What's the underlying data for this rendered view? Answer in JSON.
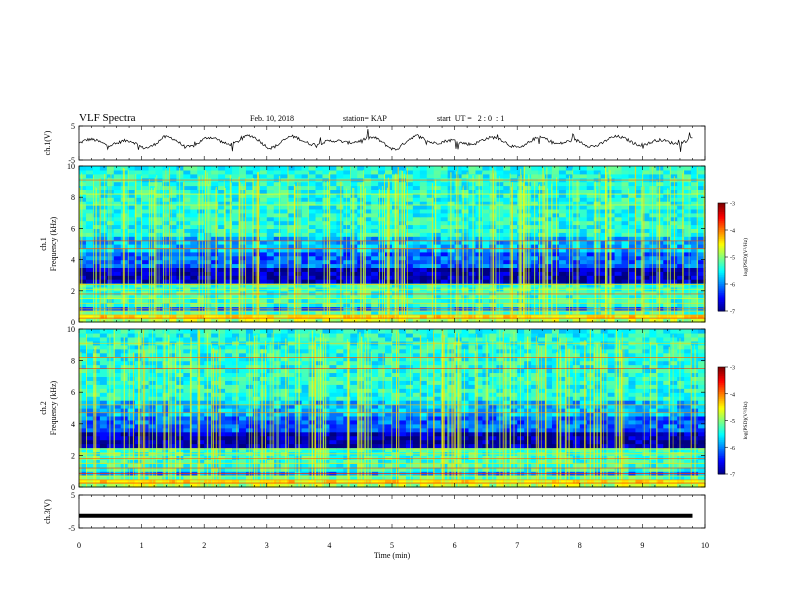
{
  "header": {
    "title": "VLF Spectra",
    "date": "Feb. 10, 2018",
    "station": "station= KAP",
    "start": "start  UT =   2 : 0  : 1"
  },
  "chart_data": [
    {
      "type": "line",
      "panel": "ch1-waveform",
      "ylabel": "ch.1(V)",
      "ylim": [
        -5,
        5
      ],
      "yticks": [
        "5",
        "-5"
      ],
      "xlim": [
        0,
        10
      ],
      "series": [
        {
          "values": [
            -0.2,
            0.6,
            0.3,
            -1.5,
            1.8,
            -0.8,
            1.2,
            0.5,
            2.1,
            -1.0,
            1.5,
            0.8,
            -0.5,
            1.7,
            0.9,
            -1.6,
            2.0,
            1.1,
            -0.7,
            1.8,
            0.6,
            -1.2,
            1.9,
            0.4,
            -0.9,
            1.3,
            1.5,
            -0.6,
            0.9,
            1.4
          ]
        }
      ]
    },
    {
      "type": "heatmap",
      "panel": "ch1-spectrogram",
      "ylabel": "ch.1\nFrequency (kHz)",
      "ylim": [
        0,
        10
      ],
      "yticks": [
        "0",
        "2",
        "4",
        "6",
        "8",
        "10"
      ],
      "xlim": [
        0,
        10
      ],
      "colorbar": {
        "label": "log(PSD)(V²/Hz)",
        "range": [
          -7,
          -3
        ],
        "ticks": [
          "-3",
          "-4",
          "-5",
          "-6",
          "-7"
        ]
      }
    },
    {
      "type": "heatmap",
      "panel": "ch2-spectrogram",
      "ylabel": "ch.2\nFrequency (kHz)",
      "ylim": [
        0,
        10
      ],
      "yticks": [
        "0",
        "2",
        "4",
        "6",
        "8",
        "10"
      ],
      "xlim": [
        0,
        10
      ],
      "colorbar": {
        "label": "log(PSD)(V²/Hz)",
        "range": [
          -7,
          -3
        ],
        "ticks": [
          "-3",
          "-4",
          "-5",
          "-6",
          "-7"
        ]
      }
    },
    {
      "type": "line",
      "panel": "ch3-waveform",
      "ylabel": "ch.3(V)",
      "ylim": [
        -5,
        5
      ],
      "yticks": [
        "5",
        "-5"
      ],
      "xlim": [
        0,
        10
      ],
      "series": [
        {
          "values": [
            -1.3,
            -1.3
          ]
        }
      ]
    }
  ],
  "xaxis": {
    "label": "Time  (min)",
    "ticks": [
      "0",
      "1",
      "2",
      "3",
      "4",
      "5",
      "6",
      "7",
      "8",
      "9",
      "10"
    ]
  }
}
